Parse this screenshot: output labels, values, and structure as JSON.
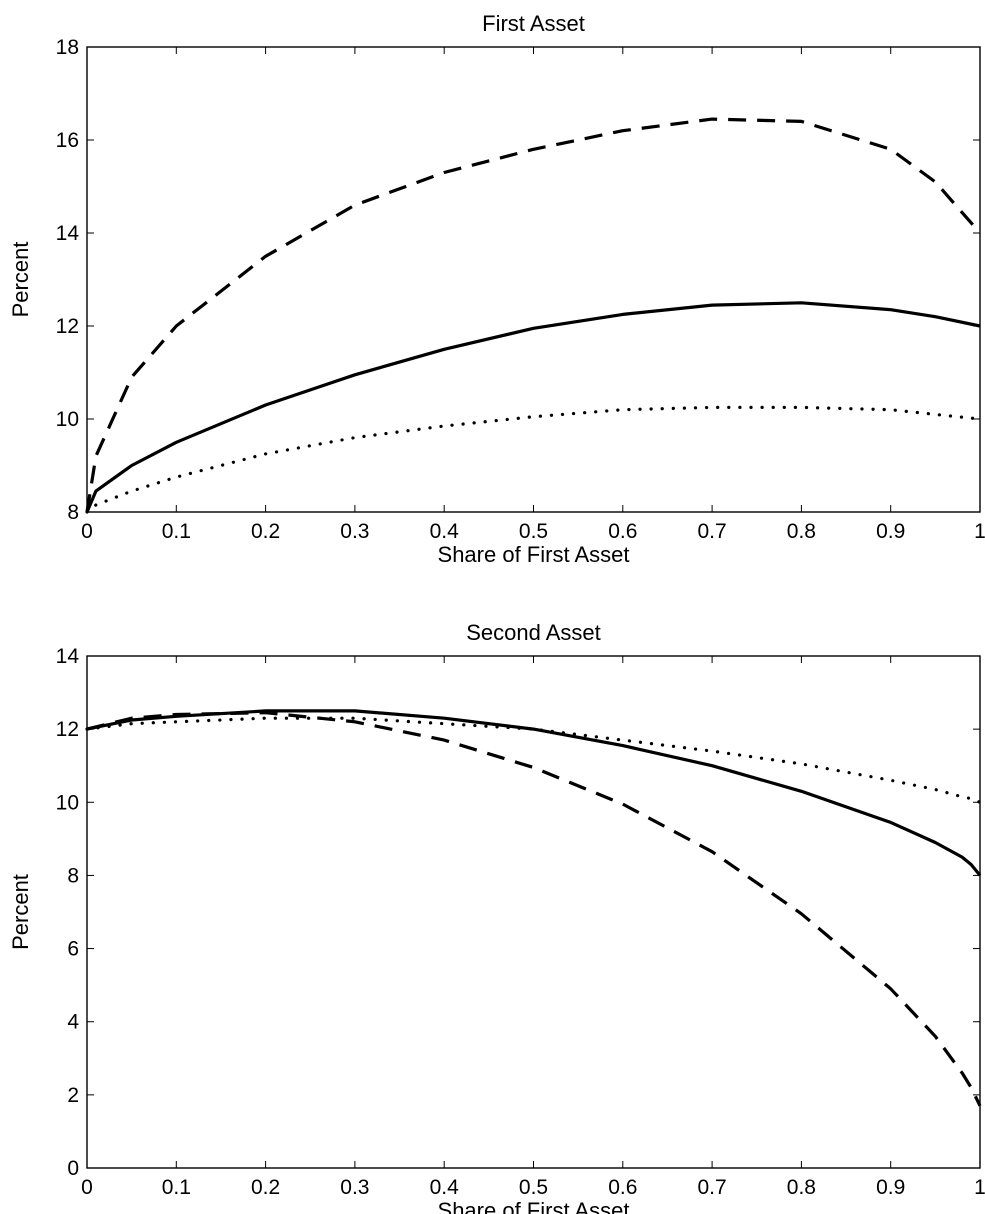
{
  "chart_data": [
    {
      "type": "line",
      "title": "First Asset",
      "xlabel": "Share of First Asset",
      "ylabel": "Percent",
      "xlim": [
        0,
        1
      ],
      "ylim": [
        8,
        18
      ],
      "xticks": [
        "0",
        "0.1",
        "0.2",
        "0.3",
        "0.4",
        "0.5",
        "0.6",
        "0.7",
        "0.8",
        "0.9",
        "1"
      ],
      "yticks": [
        "8",
        "10",
        "12",
        "14",
        "16",
        "18"
      ],
      "grid": false,
      "x": [
        0,
        0.01,
        0.05,
        0.1,
        0.2,
        0.3,
        0.4,
        0.5,
        0.6,
        0.7,
        0.8,
        0.9,
        0.95,
        1
      ],
      "series": [
        {
          "style": "dashed",
          "values": [
            8.0,
            9.2,
            10.9,
            12.0,
            13.5,
            14.6,
            15.3,
            15.8,
            16.2,
            16.45,
            16.4,
            15.8,
            15.1,
            14.0
          ]
        },
        {
          "style": "solid",
          "values": [
            8.0,
            8.45,
            9.0,
            9.5,
            10.3,
            10.95,
            11.5,
            11.95,
            12.25,
            12.45,
            12.5,
            12.35,
            12.2,
            12.0
          ]
        },
        {
          "style": "dotted",
          "values": [
            8.0,
            8.15,
            8.45,
            8.75,
            9.25,
            9.6,
            9.85,
            10.05,
            10.2,
            10.25,
            10.25,
            10.2,
            10.1,
            10.0
          ]
        }
      ]
    },
    {
      "type": "line",
      "title": "Second Asset",
      "xlabel": "Share of First Asset",
      "ylabel": "Percent",
      "xlim": [
        0,
        1
      ],
      "ylim": [
        0,
        14
      ],
      "xticks": [
        "0",
        "0.1",
        "0.2",
        "0.3",
        "0.4",
        "0.5",
        "0.6",
        "0.7",
        "0.8",
        "0.9",
        "1"
      ],
      "yticks": [
        "0",
        "2",
        "4",
        "6",
        "8",
        "10",
        "12",
        "14"
      ],
      "grid": false,
      "x": [
        0,
        0.05,
        0.1,
        0.2,
        0.3,
        0.4,
        0.5,
        0.6,
        0.7,
        0.8,
        0.9,
        0.95,
        0.98,
        0.99,
        1
      ],
      "series": [
        {
          "style": "solid",
          "values": [
            12.0,
            12.25,
            12.35,
            12.5,
            12.5,
            12.3,
            12.0,
            11.55,
            11.0,
            10.3,
            9.45,
            8.9,
            8.5,
            8.3,
            8.0
          ]
        },
        {
          "style": "dashed",
          "values": [
            12.0,
            12.3,
            12.4,
            12.45,
            12.2,
            11.7,
            10.95,
            9.95,
            8.65,
            6.95,
            4.9,
            3.6,
            2.6,
            2.2,
            1.7
          ]
        },
        {
          "style": "dotted",
          "values": [
            12.0,
            12.15,
            12.2,
            12.3,
            12.3,
            12.15,
            12.0,
            11.7,
            11.4,
            11.05,
            10.6,
            10.35,
            10.15,
            10.1,
            10.0
          ]
        }
      ]
    }
  ]
}
